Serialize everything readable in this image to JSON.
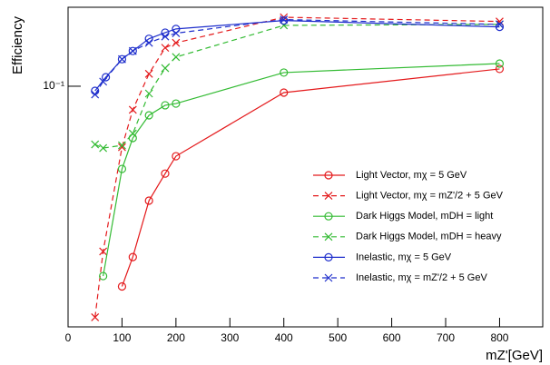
{
  "chart_data": {
    "type": "line",
    "xlabel": "mZ'[GeV]",
    "ylabel": "Efficiency",
    "xlim": [
      0,
      880
    ],
    "xticks": [
      0,
      100,
      200,
      300,
      400,
      500,
      600,
      700,
      800
    ],
    "ylim": [
      0.0079,
      0.23
    ],
    "yticks": [
      {
        "value": 0.1,
        "label": "10⁻¹"
      }
    ],
    "log_y": true,
    "legend": "lower right",
    "series": [
      {
        "name": "Light Vector, mχ = 5 GeV",
        "color": "#e41a1c",
        "dashed": false,
        "marker": "circle",
        "x": [
          100,
          120,
          150,
          180,
          200,
          400,
          800
        ],
        "values": [
          0.0121,
          0.0165,
          0.0299,
          0.0398,
          0.0478,
          0.0935,
          0.12
        ]
      },
      {
        "name": "Light Vector, mχ = mZ'/2 + 5 GeV",
        "color": "#e41a1c",
        "dashed": true,
        "marker": "x",
        "x": [
          50,
          65,
          100,
          120,
          150,
          180,
          200,
          400,
          800
        ],
        "values": [
          0.00874,
          0.0175,
          0.0526,
          0.078,
          0.114,
          0.15,
          0.158,
          0.207,
          0.198
        ]
      },
      {
        "name": "Dark Higgs Model, mDH = light",
        "color": "#33bb33",
        "dashed": false,
        "marker": "circle",
        "x": [
          65,
          100,
          120,
          150,
          180,
          200,
          400,
          800
        ],
        "values": [
          0.0135,
          0.0418,
          0.0579,
          0.0736,
          0.0818,
          0.0833,
          0.1155,
          0.127
        ]
      },
      {
        "name": "Dark Higgs Model, mDH = heavy",
        "color": "#33bb33",
        "dashed": true,
        "marker": "x",
        "x": [
          50,
          65,
          100,
          120,
          150,
          180,
          200,
          400,
          800
        ],
        "values": [
          0.0541,
          0.0521,
          0.0536,
          0.0607,
          0.0926,
          0.121,
          0.136,
          0.19,
          0.192
        ]
      },
      {
        "name": "Inelastic, mχ = 5 GeV",
        "color": "#1f2fcc",
        "dashed": false,
        "marker": "circle",
        "x": [
          50,
          70,
          100,
          120,
          150,
          180,
          200,
          400,
          800
        ],
        "values": [
          0.0953,
          0.11,
          0.133,
          0.145,
          0.165,
          0.176,
          0.183,
          0.2,
          0.187
        ]
      },
      {
        "name": "Inelastic, mχ = mZ'/2 + 5 GeV",
        "color": "#1f2fcc",
        "dashed": true,
        "marker": "x",
        "x": [
          50,
          65,
          100,
          120,
          150,
          180,
          200,
          400,
          800
        ],
        "values": [
          0.0917,
          0.105,
          0.133,
          0.145,
          0.158,
          0.169,
          0.175,
          0.202,
          0.192
        ]
      }
    ]
  }
}
